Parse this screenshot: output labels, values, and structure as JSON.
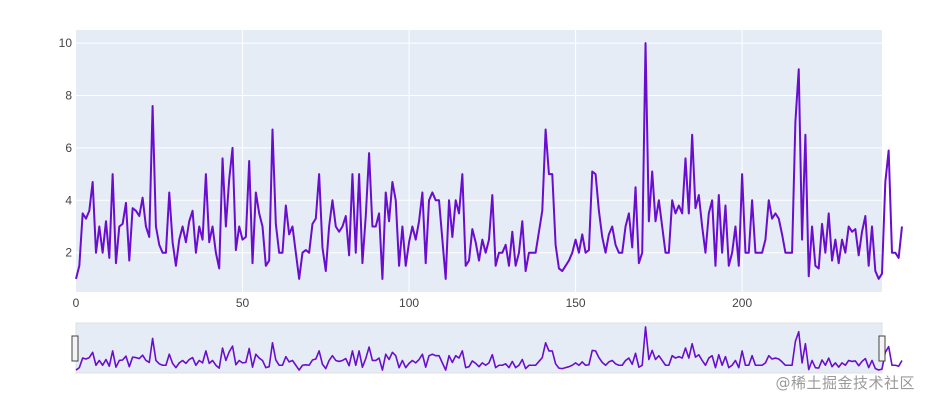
{
  "chart_data": {
    "type": "line",
    "x_start": 0,
    "x_step": 1,
    "xlim": [
      0,
      242
    ],
    "ylim": [
      0.5,
      10.5
    ],
    "xticks": [
      0,
      50,
      100,
      150,
      200
    ],
    "yticks": [
      2,
      4,
      6,
      8,
      10
    ],
    "grid": true,
    "range_slider": true,
    "series": [
      {
        "color": "#6a0dcf",
        "values": [
          1.0,
          1.5,
          3.5,
          3.3,
          3.6,
          4.7,
          2.0,
          3.0,
          2.0,
          3.2,
          1.8,
          5.0,
          1.6,
          3.0,
          3.1,
          3.9,
          1.7,
          3.7,
          3.6,
          3.4,
          4.1,
          3.0,
          2.6,
          7.6,
          3.0,
          2.3,
          2.0,
          2.0,
          4.3,
          2.4,
          1.5,
          2.5,
          3.0,
          2.4,
          3.2,
          3.6,
          2.0,
          3.0,
          2.5,
          5.0,
          2.4,
          3.0,
          2.0,
          1.4,
          5.6,
          3.0,
          4.8,
          6.0,
          2.1,
          3.0,
          2.5,
          2.6,
          5.5,
          1.6,
          4.3,
          3.5,
          3.0,
          1.5,
          1.7,
          6.7,
          3.1,
          2.0,
          2.0,
          3.8,
          2.7,
          3.0,
          2.0,
          1.0,
          2.0,
          2.1,
          2.0,
          3.1,
          3.3,
          5.0,
          2.2,
          1.3,
          3.0,
          4.0,
          3.0,
          2.8,
          3.0,
          3.4,
          1.9,
          5.0,
          2.0,
          5.0,
          1.6,
          3.4,
          5.8,
          3.0,
          3.0,
          3.5,
          1.0,
          4.3,
          3.2,
          4.7,
          4.0,
          1.5,
          3.0,
          1.5,
          2.4,
          3.0,
          2.5,
          3.2,
          4.3,
          1.6,
          4.0,
          4.3,
          4.0,
          4.0,
          2.5,
          1.0,
          4.0,
          2.6,
          4.0,
          3.5,
          5.0,
          1.5,
          1.7,
          2.9,
          2.4,
          1.7,
          2.5,
          2.0,
          2.5,
          4.2,
          1.5,
          2.0,
          2.0,
          2.3,
          1.5,
          2.8,
          1.5,
          2.0,
          3.2,
          1.3,
          2.0,
          2.0,
          2.0,
          2.8,
          3.6,
          6.7,
          5.0,
          5.0,
          2.3,
          1.4,
          1.3,
          1.5,
          1.7,
          2.0,
          2.5,
          2.0,
          2.7,
          2.0,
          2.1,
          5.1,
          5.0,
          3.6,
          2.6,
          2.0,
          2.7,
          3.0,
          2.3,
          2.0,
          2.0,
          3.0,
          3.5,
          2.2,
          4.5,
          1.6,
          2.0,
          10.0,
          3.2,
          5.1,
          3.2,
          4.0,
          3.0,
          2.0,
          2.0,
          4.0,
          3.5,
          3.8,
          3.5,
          5.6,
          3.5,
          6.5,
          3.7,
          4.2,
          3.0,
          2.0,
          3.5,
          4.0,
          1.5,
          4.2,
          2.0,
          3.8,
          1.5,
          2.0,
          3.0,
          1.5,
          5.0,
          2.0,
          2.0,
          4.0,
          2.0,
          2.0,
          2.0,
          2.5,
          4.0,
          3.3,
          3.5,
          3.3,
          2.7,
          2.0,
          2.0,
          2.0,
          7.0,
          9.0,
          2.5,
          6.5,
          1.1,
          3.0,
          1.5,
          1.4,
          3.1,
          2.0,
          3.5,
          1.7,
          2.5,
          1.6,
          2.5,
          2.0,
          3.0,
          2.8,
          2.9,
          1.9,
          2.8,
          3.4,
          1.5,
          3.0,
          1.3,
          1.0,
          1.2,
          4.7,
          5.9,
          2.0,
          2.0,
          1.8,
          3.0
        ]
      }
    ]
  },
  "watermark": "@稀土掘金技术社区"
}
